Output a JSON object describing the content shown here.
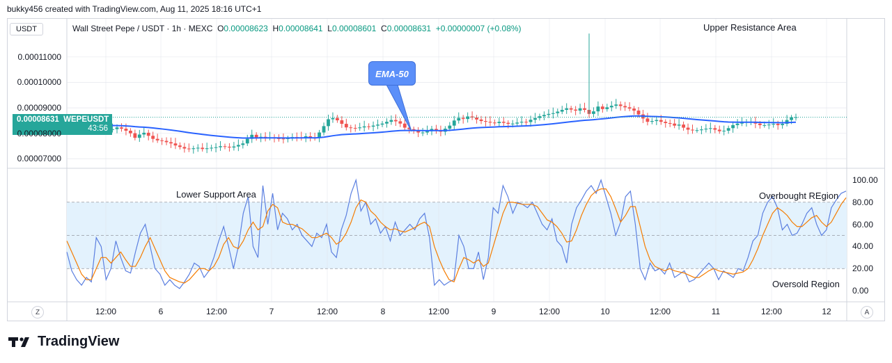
{
  "credit": "bukky456 created with TradingView.com, Aug 11, 2025 18:16 UTC+1",
  "brand": "TradingView",
  "currency_button": "USDT",
  "legend": {
    "symbol": "Wall Street Pepe / USDT · 1h · MEXC",
    "o_label": "O",
    "o": "0.00008623",
    "h_label": "H",
    "h": "0.00008641",
    "l_label": "L",
    "l": "0.00008601",
    "c_label": "C",
    "c": "0.00008631",
    "change": "+0.00000007 (+0.08%)"
  },
  "price_tag": {
    "price": "0.00008631",
    "ticker": "WEPEUSDT",
    "timer": "43:56"
  },
  "annotations": {
    "upper_resistance": "Upper Resistance Area",
    "lower_support": "Lower Support Area",
    "overbought": "Overbought REgion",
    "oversold": "Oversold Region",
    "ema": "EMA-50"
  },
  "axis_buttons": {
    "left": "Z",
    "right": "A"
  },
  "colors": {
    "up": "#26a69a",
    "down": "#ef5350",
    "ema": "#2962ff",
    "k_line": "#5b7fe0",
    "d_line": "#f57c00",
    "band_fill": "#e3f2fd",
    "grid": "#e0e3eb"
  },
  "chart_data": [
    {
      "type": "candlestick",
      "title": "Wall Street Pepe / USDT · 1h · MEXC",
      "y_ticks": [
        "0.00011000",
        "0.00010000",
        "0.00009000",
        "0.00008000",
        "0.00007000"
      ],
      "ylim": [
        6.65e-05,
        0.000125
      ],
      "x_ticks": [
        "12:00",
        "6",
        "12:00",
        "7",
        "12:00",
        "8",
        "12:00",
        "9",
        "12:00",
        "10",
        "12:00",
        "11",
        "12:00",
        "12"
      ],
      "last_price": 8.631e-05,
      "close": [
        8.33e-05,
        8.29e-05,
        8.26e-05,
        8.22e-05,
        8.18e-05,
        8.23e-05,
        8.28e-05,
        8.26e-05,
        8.19e-05,
        8.13e-05,
        8.16e-05,
        8.23e-05,
        8.18e-05,
        8.1e-05,
        8e-05,
        7.82e-05,
        7.95e-05,
        8.02e-05,
        7.9e-05,
        7.78e-05,
        7.72e-05,
        7.7e-05,
        7.65e-05,
        7.6e-05,
        7.52e-05,
        7.46e-05,
        7.4e-05,
        7.38e-05,
        7.41e-05,
        7.43e-05,
        7.38e-05,
        7.41e-05,
        7.43e-05,
        7.45e-05,
        7.49e-05,
        7.47e-05,
        7.44e-05,
        7.48e-05,
        7.54e-05,
        7.6e-05,
        7.78e-05,
        7.94e-05,
        7.83e-05,
        7.86e-05,
        7.82e-05,
        7.84e-05,
        7.8e-05,
        7.79e-05,
        7.78e-05,
        7.8e-05,
        7.85e-05,
        7.84e-05,
        7.83e-05,
        7.88e-05,
        7.82e-05,
        7.81e-05,
        8.03e-05,
        8.28e-05,
        8.55e-05,
        8.6e-05,
        8.51e-05,
        8.37e-05,
        8.23e-05,
        8.21e-05,
        8.2e-05,
        8.23e-05,
        8.27e-05,
        8.26e-05,
        8.3e-05,
        8.34e-05,
        8.38e-05,
        8.45e-05,
        8.52e-05,
        8.47e-05,
        8.38e-05,
        8.22e-05,
        8.16e-05,
        8.1e-05,
        8.03e-05,
        8.03e-05,
        8.08e-05,
        8.17e-05,
        8.1e-05,
        8.06e-05,
        8.18e-05,
        8.3e-05,
        8.5e-05,
        8.6e-05,
        8.56e-05,
        8.66e-05,
        8.62e-05,
        8.54e-05,
        8.48e-05,
        8.45e-05,
        8.42e-05,
        8.4e-05,
        8.45e-05,
        8.41e-05,
        8.37e-05,
        8.38e-05,
        8.42e-05,
        8.45e-05,
        8.44e-05,
        8.53e-05,
        8.6e-05,
        8.67e-05,
        8.72e-05,
        8.76e-05,
        8.79e-05,
        8.85e-05,
        8.92e-05,
        8.98e-05,
        8.93e-05,
        8.89e-05,
        8.98e-05,
        8.92e-05,
        8.76e-05,
        8.86e-05,
        9.05e-05,
        8.95e-05,
        9.02e-05,
        9.08e-05,
        9.13e-05,
        9.07e-05,
        9.02e-05,
        8.97e-05,
        8.89e-05,
        8.74e-05,
        8.58e-05,
        8.45e-05,
        8.48e-05,
        8.52e-05,
        8.45e-05,
        8.4e-05,
        8.38e-05,
        8.3e-05,
        8.34e-05,
        8.22e-05,
        8.14e-05,
        8.12e-05,
        8.12e-05,
        8.15e-05,
        8.18e-05,
        8.2e-05,
        8.14e-05,
        8.08e-05,
        8.1e-05,
        8.2e-05,
        8.32e-05,
        8.38e-05,
        8.42e-05,
        8.44e-05,
        8.45e-05,
        8.38e-05,
        8.32e-05,
        8.32e-05,
        8.34e-05,
        8.37e-05,
        8.32e-05,
        8.37e-05,
        8.52e-05,
        8.62e-05,
        8.63e-05
      ]
    },
    {
      "type": "line",
      "title": "",
      "y_ticks": [
        "100.00",
        "80.00",
        "60.00",
        "40.00",
        "20.00",
        "0.00"
      ],
      "ylim": [
        -10,
        110
      ],
      "bands": {
        "upper": 80,
        "middle": 50,
        "lower": 20
      },
      "series": [
        {
          "values": [
            35,
            18,
            10,
            5,
            12,
            8,
            48,
            40,
            10,
            20,
            45,
            30,
            18,
            16,
            35,
            52,
            60,
            40,
            20,
            15,
            5,
            10,
            5,
            2,
            8,
            15,
            25,
            22,
            12,
            18,
            30,
            45,
            58,
            40,
            20,
            40,
            70,
            85,
            40,
            30,
            95,
            60,
            88,
            55,
            70,
            65,
            55,
            60,
            50,
            45,
            40,
            52,
            48,
            60,
            35,
            30,
            55,
            68,
            88,
            100,
            72,
            80,
            60,
            65,
            52,
            58,
            45,
            62,
            50,
            55,
            60,
            55,
            65,
            70,
            48,
            5,
            10,
            5,
            8,
            10,
            50,
            40,
            20,
            20,
            35,
            10,
            30,
            75,
            70,
            95,
            85,
            70,
            80,
            78,
            75,
            80,
            70,
            60,
            55,
            65,
            45,
            40,
            25,
            60,
            75,
            82,
            90,
            95,
            88,
            100,
            85,
            70,
            50,
            62,
            85,
            90,
            60,
            20,
            10,
            25,
            18,
            20,
            15,
            25,
            12,
            15,
            18,
            8,
            10,
            15,
            20,
            25,
            20,
            10,
            18,
            15,
            12,
            20,
            18,
            30,
            45,
            50,
            70,
            80,
            85,
            75,
            55,
            60,
            50,
            52,
            60,
            70,
            75,
            60,
            50,
            55,
            75,
            82,
            88,
            90
          ]
        },
        {
          "values": [
            45,
            35,
            25,
            15,
            10,
            10,
            20,
            30,
            30,
            25,
            30,
            35,
            28,
            22,
            22,
            30,
            40,
            48,
            38,
            28,
            18,
            12,
            10,
            8,
            7,
            10,
            15,
            20,
            20,
            18,
            22,
            30,
            42,
            48,
            40,
            38,
            45,
            55,
            62,
            55,
            58,
            72,
            78,
            75,
            62,
            60,
            60,
            58,
            56,
            52,
            48,
            48,
            50,
            52,
            48,
            42,
            45,
            52,
            62,
            75,
            82,
            80,
            72,
            68,
            62,
            58,
            55,
            56,
            54,
            53,
            55,
            57,
            60,
            62,
            58,
            40,
            28,
            18,
            10,
            8,
            20,
            30,
            28,
            25,
            28,
            22,
            25,
            40,
            55,
            70,
            80,
            80,
            79,
            78,
            78,
            78,
            76,
            70,
            64,
            62,
            58,
            52,
            44,
            45,
            55,
            68,
            78,
            86,
            90,
            92,
            92,
            85,
            74,
            62,
            68,
            76,
            76,
            58,
            40,
            28,
            22,
            20,
            18,
            20,
            18,
            17,
            16,
            14,
            12,
            12,
            15,
            18,
            20,
            18,
            17,
            16,
            15,
            16,
            17,
            20,
            28,
            38,
            50,
            60,
            70,
            75,
            72,
            68,
            62,
            58,
            58,
            62,
            66,
            68,
            62,
            58,
            62,
            70,
            78,
            84
          ]
        }
      ]
    }
  ]
}
